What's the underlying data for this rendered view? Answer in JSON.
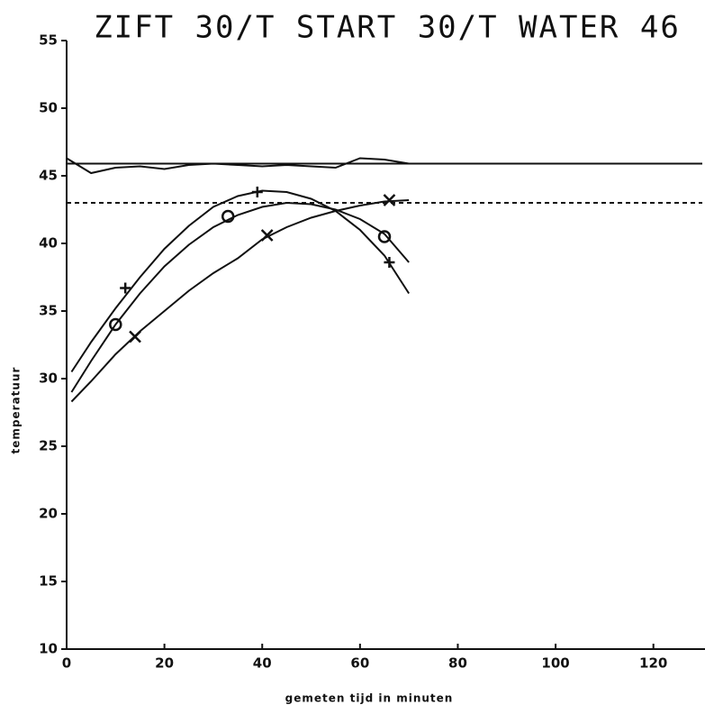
{
  "chart_data": {
    "type": "line",
    "title": "ZIFT 30/T START 30/T WATER 46",
    "x_label": "gemeten tijd in minuten",
    "y_label": "temperatuur",
    "xlim": [
      0,
      130
    ],
    "ylim": [
      10,
      55
    ],
    "xticks": [
      0,
      20,
      40,
      60,
      80,
      100,
      120
    ],
    "yticks": [
      10,
      15,
      20,
      25,
      30,
      35,
      40,
      45,
      50,
      55
    ],
    "series": [
      {
        "color": "#111111",
        "style": "solid",
        "x": [
          0,
          130
        ],
        "values": [
          45.9,
          45.9
        ]
      },
      {
        "color": "#111111",
        "style": "dashed",
        "x": [
          0,
          130
        ],
        "values": [
          43,
          43
        ]
      },
      {
        "color": "#111111",
        "style": "solid",
        "x": [
          0,
          5,
          10,
          15,
          20,
          25,
          30,
          35,
          40,
          45,
          50,
          55,
          60,
          65,
          70
        ],
        "values": [
          46.3,
          45.2,
          45.6,
          45.7,
          45.5,
          45.8,
          45.9,
          45.8,
          45.7,
          45.8,
          45.7,
          45.6,
          46.3,
          46.2,
          45.9
        ]
      },
      {
        "color": "#111111",
        "style": "solid",
        "marker": "plus",
        "x": [
          1,
          5,
          10,
          15,
          20,
          25,
          30,
          35,
          40,
          45,
          50,
          55,
          60,
          65,
          70
        ],
        "values": [
          30.5,
          32.7,
          35.2,
          37.5,
          39.6,
          41.3,
          42.7,
          43.5,
          43.9,
          43.8,
          43.3,
          42.4,
          41.0,
          39.1,
          36.3
        ],
        "marker_x": [
          12,
          39,
          66
        ],
        "marker_values": [
          36.7,
          43.8,
          38.6
        ]
      },
      {
        "color": "#111111",
        "style": "solid",
        "marker": "circle",
        "x": [
          1,
          5,
          10,
          15,
          20,
          25,
          30,
          35,
          40,
          45,
          50,
          55,
          60,
          65,
          70
        ],
        "values": [
          29.0,
          31.3,
          34.0,
          36.3,
          38.3,
          39.9,
          41.2,
          42.1,
          42.7,
          43.0,
          42.9,
          42.5,
          41.8,
          40.7,
          38.6
        ],
        "marker_x": [
          10,
          33,
          65
        ],
        "marker_values": [
          34.0,
          42.0,
          40.5
        ]
      },
      {
        "color": "#111111",
        "style": "solid",
        "marker": "cross",
        "x": [
          1,
          5,
          10,
          15,
          20,
          25,
          30,
          35,
          40,
          45,
          50,
          55,
          60,
          65,
          70
        ],
        "values": [
          28.3,
          29.8,
          31.8,
          33.5,
          35.0,
          36.5,
          37.8,
          38.9,
          40.3,
          41.2,
          41.9,
          42.4,
          42.8,
          43.1,
          43.2
        ],
        "marker_x": [
          14,
          41,
          66
        ],
        "marker_values": [
          33.1,
          40.6,
          43.2
        ]
      }
    ]
  }
}
